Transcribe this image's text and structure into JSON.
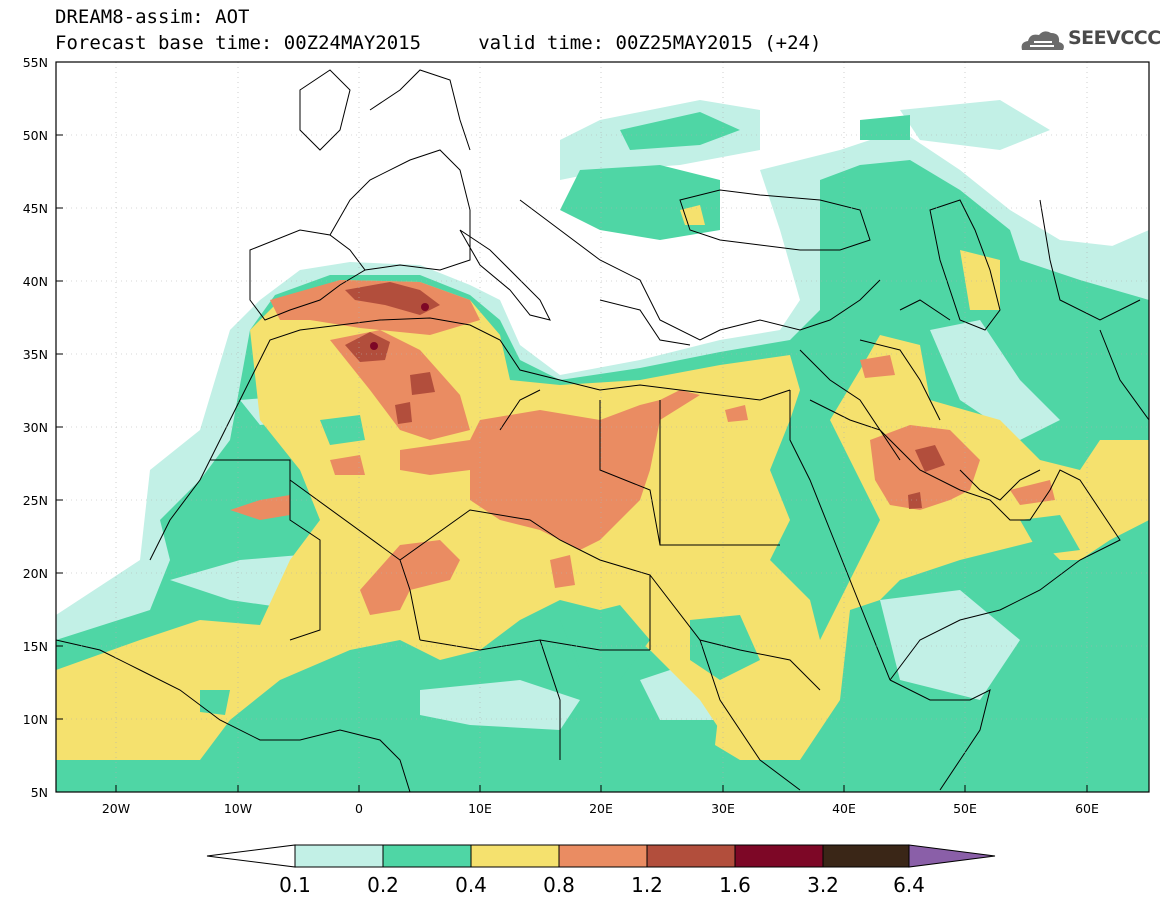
{
  "header": {
    "title_line1": "DREAM8-assim: AOT",
    "title_line2": "Forecast base time: 00Z24MAY2015     valid time: 00Z25MAY2015 (+24)",
    "logo_text": "SEEVCCC"
  },
  "map": {
    "projection": "lat-lon",
    "lon_range": [
      -25,
      65
    ],
    "lat_range": [
      5,
      55
    ],
    "lat_ticks": [
      "55N",
      "50N",
      "45N",
      "40N",
      "35N",
      "30N",
      "25N",
      "20N",
      "15N",
      "10N",
      "5N"
    ],
    "lon_ticks": [
      "20W",
      "10W",
      "0",
      "10E",
      "20E",
      "30E",
      "40E",
      "50E",
      "60E"
    ]
  },
  "colorbar": {
    "labels": [
      "0.1",
      "0.2",
      "0.4",
      "0.8",
      "1.2",
      "1.6",
      "3.2",
      "6.4"
    ],
    "colors": [
      "#ffffff",
      "#c2f0e6",
      "#4fd6a5",
      "#f5e16e",
      "#ea8c62",
      "#b24e3c",
      "#7d0726",
      "#3a2617",
      "#8a5fa8"
    ]
  }
}
